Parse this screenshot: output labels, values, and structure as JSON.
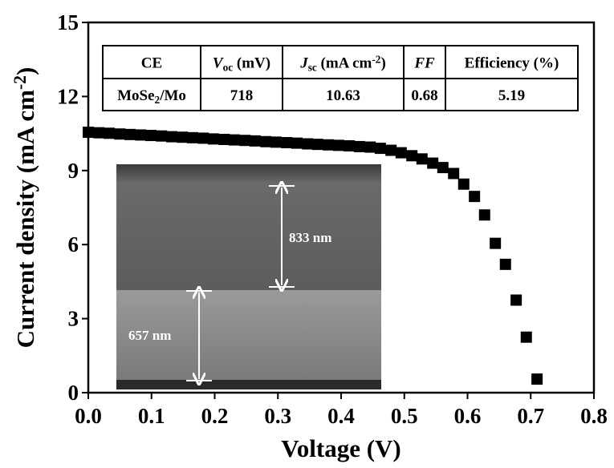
{
  "chart_data": {
    "type": "scatter",
    "xlabel": "Voltage (V)",
    "ylabel": [
      {
        "text": "Current density (mA cm"
      },
      {
        "text": "-2",
        "style": "sup"
      },
      {
        "text": ")"
      }
    ],
    "x": [
      0,
      0.017,
      0.033,
      0.05,
      0.066,
      0.083,
      0.099,
      0.116,
      0.132,
      0.149,
      0.165,
      0.182,
      0.198,
      0.215,
      0.231,
      0.248,
      0.264,
      0.281,
      0.297,
      0.314,
      0.33,
      0.347,
      0.363,
      0.38,
      0.396,
      0.413,
      0.429,
      0.446,
      0.462,
      0.479,
      0.495,
      0.512,
      0.528,
      0.545,
      0.561,
      0.578,
      0.594,
      0.611,
      0.627,
      0.644,
      0.66,
      0.677,
      0.693,
      0.71
    ],
    "values": [
      10.55,
      10.53,
      10.51,
      10.48,
      10.46,
      10.44,
      10.42,
      10.4,
      10.37,
      10.35,
      10.33,
      10.31,
      10.28,
      10.26,
      10.24,
      10.22,
      10.2,
      10.17,
      10.15,
      10.13,
      10.11,
      10.08,
      10.06,
      10.04,
      10.02,
      10.0,
      9.97,
      9.95,
      9.9,
      9.82,
      9.72,
      9.6,
      9.47,
      9.3,
      9.12,
      8.88,
      8.45,
      7.95,
      7.2,
      6.05,
      5.2,
      3.75,
      2.25,
      0.55
    ],
    "color": "#000000",
    "xlim": [
      0,
      0.8
    ],
    "xticks": [
      {
        "value": 0,
        "label": "0.0"
      },
      0.1,
      0.2,
      0.3,
      0.4,
      0.5,
      0.6,
      0.7,
      0.8
    ],
    "ylim": [
      0,
      15
    ],
    "yticks": [
      0,
      3,
      6,
      9,
      12,
      15
    ],
    "annotations": [
      "833 nm",
      "657 nm"
    ],
    "table": {
      "header": [
        "CE",
        [
          {
            "text": "V",
            "style": "italic"
          },
          {
            "text": "oc",
            "style": "sub"
          },
          {
            "text": " (mV)"
          }
        ],
        [
          {
            "text": "J",
            "style": "italic"
          },
          {
            "text": "sc",
            "style": "sub"
          },
          {
            "text": " (mA cm"
          },
          {
            "text": "-2",
            "style": "sup"
          },
          {
            "text": ")"
          }
        ],
        [
          {
            "text": "FF",
            "style": "italic"
          }
        ],
        "Efficiency (%)"
      ],
      "rows": [
        [
          [
            {
              "text": "MoSe"
            },
            {
              "text": "2",
              "style": "sub"
            },
            {
              "text": "/Mo"
            }
          ],
          "718",
          "10.63",
          "0.68",
          "5.19"
        ]
      ]
    }
  }
}
